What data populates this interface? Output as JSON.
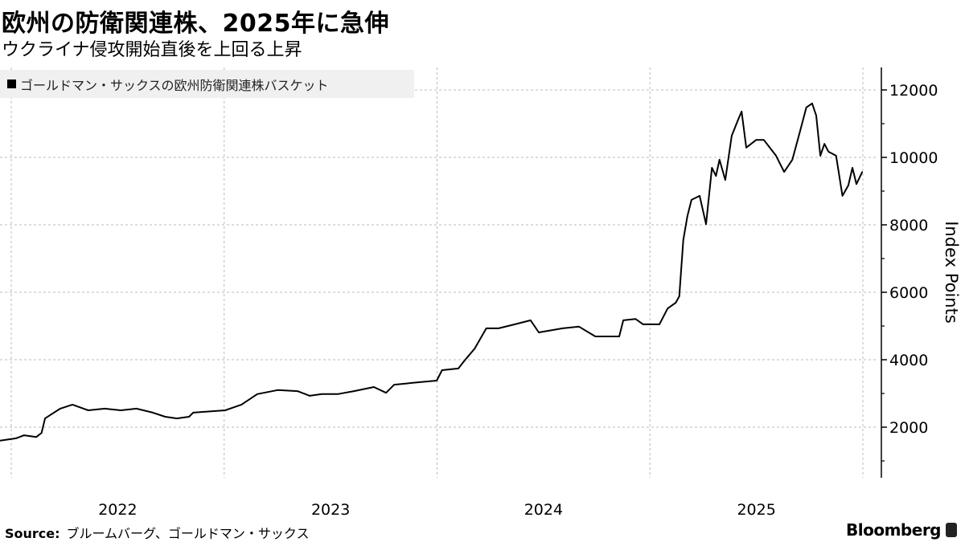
{
  "header": {
    "title": "欧州の防衛関連株、2025年に急伸",
    "subtitle": "ウクライナ侵攻開始直後を上回る上昇"
  },
  "footer": {
    "source_label": "Source:",
    "source_text": "ブルームバーグ、ゴールドマン・サックス",
    "brand": "Bloomberg"
  },
  "chart_data": {
    "type": "line",
    "title": "欧州の防衛関連株、2025年に急伸",
    "subtitle": "ウクライナ侵攻開始直後を上回る上昇",
    "ylabel": "Index Points",
    "xlabel": "",
    "ylim": [
      500,
      12700
    ],
    "yticks": [
      "2000",
      "4000",
      "6000",
      "8000",
      "10000",
      "12000"
    ],
    "xticks": [
      "2022",
      "2023",
      "2024",
      "2025"
    ],
    "grid": true,
    "legend_position": "top-left",
    "line_color": "#000000",
    "series": [
      {
        "name": "ゴールドマン・サックスの欧州防衛関連株バスケット",
        "x": [
          "2021-12-13",
          "2022-01-09",
          "2022-01-23",
          "2022-02-13",
          "2022-02-22",
          "2022-02-28",
          "2022-03-08",
          "2022-03-26",
          "2022-04-16",
          "2022-05-13",
          "2022-06-10",
          "2022-07-08",
          "2022-08-04",
          "2022-09-01",
          "2022-09-22",
          "2022-10-12",
          "2022-11-02",
          "2022-11-09",
          "2022-11-23",
          "2023-01-03",
          "2023-01-31",
          "2023-02-27",
          "2023-04-03",
          "2023-05-07",
          "2023-05-28",
          "2023-06-18",
          "2023-07-15",
          "2023-08-12",
          "2023-09-15",
          "2023-10-06",
          "2023-10-20",
          "2023-11-30",
          "2024-01-01",
          "2024-01-10",
          "2024-02-07",
          "2024-02-18",
          "2024-03-06",
          "2024-03-26",
          "2024-04-16",
          "2024-05-14",
          "2024-06-10",
          "2024-06-24",
          "2024-08-04",
          "2024-09-01",
          "2024-09-29",
          "2024-10-26",
          "2024-11-09",
          "2024-11-16",
          "2024-12-07",
          "2024-12-20",
          "2025-01-17",
          "2025-01-31",
          "2025-02-14",
          "2025-02-20",
          "2025-02-27",
          "2025-03-06",
          "2025-03-13",
          "2025-03-27",
          "2025-04-07",
          "2025-04-17",
          "2025-04-24",
          "2025-04-30",
          "2025-05-10",
          "2025-05-21",
          "2025-06-01",
          "2025-06-07",
          "2025-06-15",
          "2025-07-02",
          "2025-07-15",
          "2025-08-05",
          "2025-08-19",
          "2025-09-02",
          "2025-09-15",
          "2025-09-26",
          "2025-10-06",
          "2025-10-13",
          "2025-10-20",
          "2025-10-27",
          "2025-11-03",
          "2025-11-16",
          "2025-11-27",
          "2025-12-07",
          "2025-12-14",
          "2025-12-21",
          "2025-12-31"
        ],
        "values": [
          1600,
          1670,
          1760,
          1710,
          1830,
          2260,
          2350,
          2550,
          2670,
          2500,
          2550,
          2500,
          2550,
          2430,
          2310,
          2260,
          2310,
          2430,
          2450,
          2500,
          2670,
          2980,
          3100,
          3070,
          2930,
          2980,
          2980,
          3070,
          3190,
          3020,
          3260,
          3330,
          3380,
          3690,
          3740,
          3980,
          4330,
          4930,
          4930,
          5050,
          5170,
          4810,
          4930,
          4980,
          4690,
          4690,
          4690,
          5170,
          5210,
          5050,
          5050,
          5520,
          5690,
          5880,
          7550,
          8260,
          8740,
          8860,
          8020,
          9690,
          9450,
          9930,
          9330,
          10640,
          11120,
          11360,
          10290,
          10520,
          10520,
          10050,
          9570,
          9930,
          10760,
          11480,
          11600,
          11240,
          10050,
          10400,
          10170,
          10050,
          8860,
          9170,
          9690,
          9210,
          9570
        ]
      }
    ]
  }
}
